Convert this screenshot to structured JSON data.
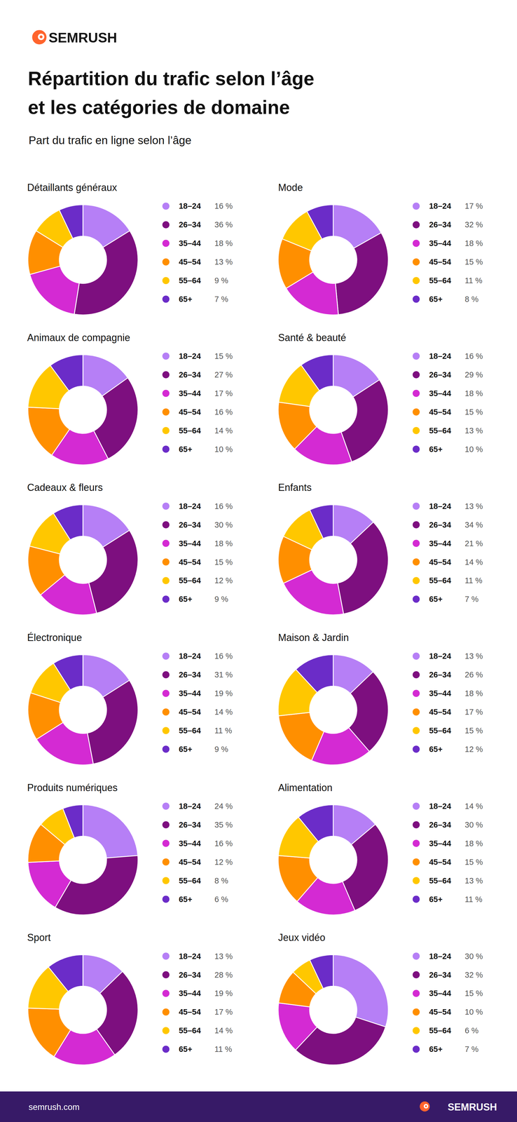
{
  "header": {
    "brand": "SEMRUSH",
    "title": [
      "Répartition du trafic selon l’âge",
      "et les catégories de domaine"
    ],
    "subtitle": "Part du trafic en ligne selon l’âge"
  },
  "footer": {
    "url": "semrush.com",
    "brand": "SEMRUSH"
  },
  "chart_data": [
    {
      "type": "pie",
      "title": "Détaillants généraux",
      "categories": [
        "18–24",
        "26–34",
        "35–44",
        "45–54",
        "55–64",
        "65+"
      ],
      "values": [
        16,
        36,
        18,
        13,
        9,
        7
      ],
      "value_labels": [
        "16 %",
        "36 %",
        "18 %",
        "13 %",
        "9 %",
        "7 %"
      ],
      "colors": [
        "#b67ff6",
        "#7d0f7f",
        "#d42ad3",
        "#ff8f00",
        "#ffc700",
        "#6b2cc8"
      ],
      "legend": "right"
    },
    {
      "type": "pie",
      "title": "Mode",
      "categories": [
        "18–24",
        "26–34",
        "35–44",
        "45–54",
        "55–64",
        "65+"
      ],
      "values": [
        17,
        32,
        18,
        15,
        11,
        8
      ],
      "value_labels": [
        "17 %",
        "32 %",
        "18 %",
        "15 %",
        "11 %",
        "8 %"
      ],
      "colors": [
        "#b67ff6",
        "#7d0f7f",
        "#d42ad3",
        "#ff8f00",
        "#ffc700",
        "#6b2cc8"
      ],
      "legend": "right"
    },
    {
      "type": "pie",
      "title": "Animaux de compagnie",
      "categories": [
        "18–24",
        "26–34",
        "35–44",
        "45–54",
        "55–64",
        "65+"
      ],
      "values": [
        15,
        27,
        17,
        16,
        14,
        10
      ],
      "value_labels": [
        "15 %",
        "27 %",
        "17 %",
        "16 %",
        "14 %",
        "10 %"
      ],
      "colors": [
        "#b67ff6",
        "#7d0f7f",
        "#d42ad3",
        "#ff8f00",
        "#ffc700",
        "#6b2cc8"
      ],
      "legend": "right"
    },
    {
      "type": "pie",
      "title": "Santé & beauté",
      "categories": [
        "18–24",
        "26–34",
        "35–44",
        "45–54",
        "55–64",
        "65+"
      ],
      "values": [
        16,
        29,
        18,
        15,
        13,
        10
      ],
      "value_labels": [
        "16 %",
        "29 %",
        "18 %",
        "15 %",
        "13 %",
        "10 %"
      ],
      "colors": [
        "#b67ff6",
        "#7d0f7f",
        "#d42ad3",
        "#ff8f00",
        "#ffc700",
        "#6b2cc8"
      ],
      "legend": "right"
    },
    {
      "type": "pie",
      "title": "Cadeaux & fleurs",
      "categories": [
        "18–24",
        "26–34",
        "35–44",
        "45–54",
        "55–64",
        "65+"
      ],
      "values": [
        16,
        30,
        18,
        15,
        12,
        9
      ],
      "value_labels": [
        "16 %",
        "30 %",
        "18 %",
        "15 %",
        "12 %",
        "9 %"
      ],
      "colors": [
        "#b67ff6",
        "#7d0f7f",
        "#d42ad3",
        "#ff8f00",
        "#ffc700",
        "#6b2cc8"
      ],
      "legend": "right"
    },
    {
      "type": "pie",
      "title": "Enfants",
      "categories": [
        "18–24",
        "26–34",
        "35–44",
        "45–54",
        "55–64",
        "65+"
      ],
      "values": [
        13,
        34,
        21,
        14,
        11,
        7
      ],
      "value_labels": [
        "13 %",
        "34 %",
        "21 %",
        "14 %",
        "11 %",
        "7 %"
      ],
      "colors": [
        "#b67ff6",
        "#7d0f7f",
        "#d42ad3",
        "#ff8f00",
        "#ffc700",
        "#6b2cc8"
      ],
      "legend": "right"
    },
    {
      "type": "pie",
      "title": "Électronique",
      "categories": [
        "18–24",
        "26–34",
        "35–44",
        "45–54",
        "55–64",
        "65+"
      ],
      "values": [
        16,
        31,
        19,
        14,
        11,
        9
      ],
      "value_labels": [
        "16 %",
        "31 %",
        "19 %",
        "14 %",
        "11 %",
        "9 %"
      ],
      "colors": [
        "#b67ff6",
        "#7d0f7f",
        "#d42ad3",
        "#ff8f00",
        "#ffc700",
        "#6b2cc8"
      ],
      "legend": "right"
    },
    {
      "type": "pie",
      "title": "Maison & Jardin",
      "categories": [
        "18–24",
        "26–34",
        "35–44",
        "45–54",
        "55–64",
        "65+"
      ],
      "values": [
        13,
        26,
        18,
        17,
        15,
        12
      ],
      "value_labels": [
        "13 %",
        "26 %",
        "18 %",
        "17 %",
        "15 %",
        "12 %"
      ],
      "colors": [
        "#b67ff6",
        "#7d0f7f",
        "#d42ad3",
        "#ff8f00",
        "#ffc700",
        "#6b2cc8"
      ],
      "legend": "right"
    },
    {
      "type": "pie",
      "title": "Produits numériques",
      "categories": [
        "18–24",
        "26–34",
        "35–44",
        "45–54",
        "55–64",
        "65+"
      ],
      "values": [
        24,
        35,
        16,
        12,
        8,
        6
      ],
      "value_labels": [
        "24 %",
        "35 %",
        "16 %",
        "12 %",
        "8 %",
        "6 %"
      ],
      "colors": [
        "#b67ff6",
        "#7d0f7f",
        "#d42ad3",
        "#ff8f00",
        "#ffc700",
        "#6b2cc8"
      ],
      "legend": "right"
    },
    {
      "type": "pie",
      "title": "Alimentation",
      "categories": [
        "18–24",
        "26–34",
        "35–44",
        "45–54",
        "55–64",
        "65+"
      ],
      "values": [
        14,
        30,
        18,
        15,
        13,
        11
      ],
      "value_labels": [
        "14 %",
        "30 %",
        "18 %",
        "15 %",
        "13 %",
        "11 %"
      ],
      "colors": [
        "#b67ff6",
        "#7d0f7f",
        "#d42ad3",
        "#ff8f00",
        "#ffc700",
        "#6b2cc8"
      ],
      "legend": "right"
    },
    {
      "type": "pie",
      "title": "Sport",
      "categories": [
        "18–24",
        "26–34",
        "35–44",
        "45–54",
        "55–64",
        "65+"
      ],
      "values": [
        13,
        28,
        19,
        17,
        14,
        11
      ],
      "value_labels": [
        "13 %",
        "28 %",
        "19 %",
        "17 %",
        "14 %",
        "11 %"
      ],
      "colors": [
        "#b67ff6",
        "#7d0f7f",
        "#d42ad3",
        "#ff8f00",
        "#ffc700",
        "#6b2cc8"
      ],
      "legend": "right"
    },
    {
      "type": "pie",
      "title": "Jeux vidéo",
      "categories": [
        "18–24",
        "26–34",
        "35–44",
        "45–54",
        "55–64",
        "65+"
      ],
      "values": [
        30,
        32,
        15,
        10,
        6,
        7
      ],
      "value_labels": [
        "30 %",
        "32 %",
        "15 %",
        "10 %",
        "6 %",
        "7 %"
      ],
      "colors": [
        "#b67ff6",
        "#7d0f7f",
        "#d42ad3",
        "#ff8f00",
        "#ffc700",
        "#6b2cc8"
      ],
      "legend": "right"
    }
  ]
}
